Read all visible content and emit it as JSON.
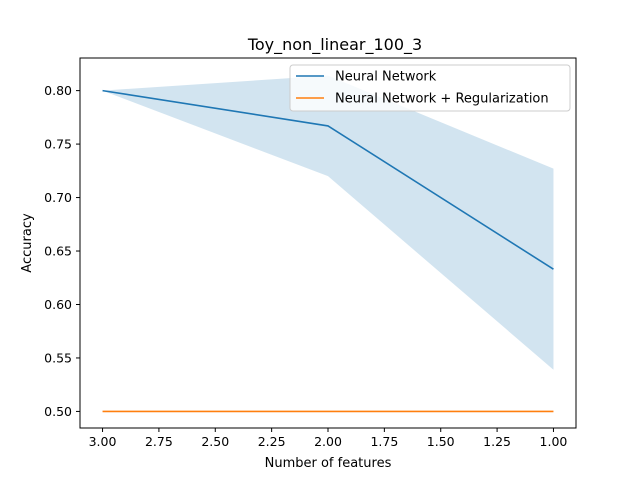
{
  "chart_data": {
    "type": "line",
    "title": "Toy_non_linear_100_3",
    "xlabel": "Number of features",
    "ylabel": "Accuracy",
    "x_inverted": true,
    "xlim": [
      3.1,
      0.9
    ],
    "ylim": [
      0.4845,
      0.8305
    ],
    "xticks": [
      3.0,
      2.75,
      2.5,
      2.25,
      2.0,
      1.75,
      1.5,
      1.25,
      1.0
    ],
    "xtick_labels": [
      "3.00",
      "2.75",
      "2.50",
      "2.25",
      "2.00",
      "1.75",
      "1.50",
      "1.25",
      "1.00"
    ],
    "yticks": [
      0.5,
      0.55,
      0.6,
      0.65,
      0.7,
      0.75,
      0.8
    ],
    "ytick_labels": [
      "0.50",
      "0.55",
      "0.60",
      "0.65",
      "0.70",
      "0.75",
      "0.80"
    ],
    "grid": false,
    "legend_position": "top-right",
    "series": [
      {
        "name": "Neural Network",
        "color": "#1f77b4",
        "x": [
          3,
          2,
          1
        ],
        "y": [
          0.8,
          0.767,
          0.633
        ],
        "band_lower": [
          0.8,
          0.72,
          0.539
        ],
        "band_upper": [
          0.8,
          0.814,
          0.727
        ],
        "band_color": "#1f77b4",
        "band_opacity": 0.2
      },
      {
        "name": "Neural Network + Regularization",
        "color": "#ff7f0e",
        "x": [
          3,
          2,
          1
        ],
        "y": [
          0.5,
          0.5,
          0.5
        ]
      }
    ]
  }
}
